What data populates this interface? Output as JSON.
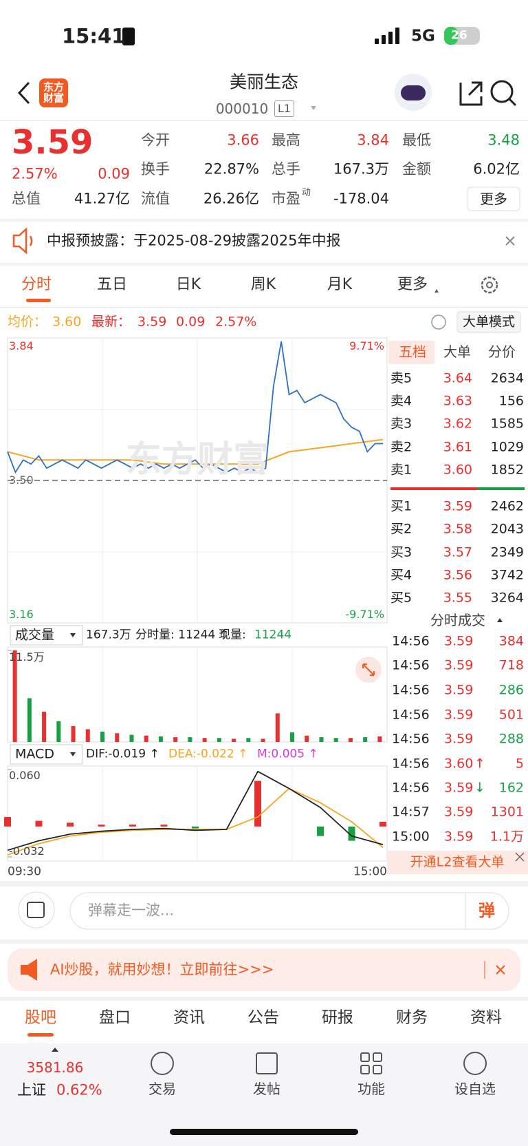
{
  "status_bar": {
    "time": "15:41",
    "network": "5G",
    "battery": "26"
  },
  "header": {
    "logo": "东方财富",
    "title": "美丽生态",
    "code": "000010",
    "level": "L1"
  },
  "quote": {
    "price": "3.59",
    "change_pct": "2.57%",
    "change": "0.09",
    "stats": [
      {
        "label": "今开",
        "value": "3.66",
        "color": "#e93030"
      },
      {
        "label": "最高",
        "value": "3.84",
        "color": "#e93030"
      },
      {
        "label": "最低",
        "value": "3.48",
        "color": "#19a047"
      },
      {
        "label": "换手",
        "value": "22.87%",
        "color": "#222222"
      },
      {
        "label": "总手",
        "value": "167.3万",
        "color": "#222222"
      },
      {
        "label": "金额",
        "value": "6.02亿",
        "color": "#222222"
      },
      {
        "label": "总值",
        "value": "41.27亿",
        "color": "#222222"
      },
      {
        "label": "流值",
        "value": "26.26亿",
        "color": "#222222"
      },
      {
        "label": "市盈",
        "sup": "动",
        "value": "-178.04",
        "color": "#222222"
      }
    ],
    "more": "更多"
  },
  "notice": "中报预披露：于2025-08-29披露2025年中报",
  "tabs": [
    "分时",
    "五日",
    "日K",
    "周K",
    "月K",
    "更多"
  ],
  "info": {
    "avg_label": "均价：",
    "avg": "3.60",
    "last_label": "最新：",
    "last": "3.59",
    "change": "0.09",
    "change_pct": "2.57%",
    "mode": "大单模式"
  },
  "chart": {
    "price": {
      "ylim": [
        3.16,
        3.84
      ],
      "yticks": [
        3.84,
        {
          "value": 3.5,
          "label": "3.50"
        },
        3.16
      ],
      "pct_labels": [
        "9.71%",
        "-9.71%"
      ],
      "watermark": "东方财富",
      "color": "#2f6fc4",
      "avg_color": "#f5a623",
      "values": [
        3.57,
        3.52,
        3.55,
        3.54,
        3.56,
        3.53,
        3.54,
        3.55,
        3.54,
        3.53,
        3.55,
        3.54,
        3.53,
        3.54,
        3.55,
        3.54,
        3.53,
        3.54,
        3.53,
        3.54,
        3.53,
        3.54,
        3.53,
        3.54,
        3.55,
        3.53,
        3.54,
        3.53,
        3.52,
        3.53,
        3.52,
        3.53,
        3.52,
        3.53,
        3.73,
        3.84,
        3.71,
        3.72,
        3.69,
        3.7,
        3.71,
        3.7,
        3.69,
        3.65,
        3.63,
        3.62,
        3.57,
        3.59,
        3.59
      ],
      "avg": [
        3.57,
        3.55,
        3.55,
        3.55,
        3.55,
        3.54,
        3.54,
        3.54,
        3.54,
        3.57,
        3.58,
        3.59,
        3.6
      ]
    },
    "volume": {
      "header": "成交量",
      "total": "167.3万",
      "period": "分时量: 11244 ↑",
      "now_label": "现量:",
      "now": "11244",
      "ylim": [
        0,
        11.5
      ],
      "yticks": [
        {
          "value": 11.5,
          "label": "11.5万"
        }
      ],
      "values": [
        11.5,
        5.5,
        3.8,
        2.6,
        2,
        1.6,
        1.3,
        1.1,
        0.9,
        0.8,
        0.7,
        0.6,
        0.6,
        0.5,
        0.5,
        0.4,
        0.5,
        0.4,
        3.6,
        1.2,
        0.8,
        0.6,
        0.5,
        0.5,
        0.6,
        0.7
      ],
      "colors": [
        "#e93030",
        "#19a047",
        "#e93030",
        "#19a047",
        "#e93030",
        "#e93030",
        "#19a047",
        "#e93030",
        "#19a047",
        "#e93030",
        "#19a047",
        "#e93030",
        "#19a047",
        "#e93030",
        "#19a047",
        "#e93030",
        "#19a047",
        "#e93030",
        "#e93030",
        "#19a047",
        "#e93030",
        "#19a047",
        "#19a047",
        "#e93030",
        "#19a047",
        "#e93030"
      ]
    },
    "macd": {
      "header": "MACD",
      "dif_label": "DIF:-0.019 ↑",
      "dea_label": "DEA:-0.022 ↑",
      "m_label": "M:0.005 ↑",
      "ylim": [
        -0.032,
        0.06
      ],
      "yticks": [
        {
          "value": 0.06,
          "label": "0.060"
        },
        {
          "value": -0.032,
          "label": "-0.032"
        }
      ],
      "dif": [
        -0.025,
        -0.015,
        -0.008,
        -0.005,
        -0.003,
        -0.002,
        -0.004,
        -0.003,
        0.058,
        0.04,
        0.02,
        -0.01,
        -0.019
      ],
      "dea": [
        -0.03,
        -0.018,
        -0.01,
        -0.006,
        -0.004,
        -0.003,
        -0.003,
        -0.003,
        0.01,
        0.04,
        0.025,
        0.005,
        -0.022
      ],
      "m": [
        0.01,
        0.006,
        0.004,
        0.002,
        0.002,
        0.002,
        -0.002,
        0,
        0.048,
        0,
        -0.01,
        -0.015,
        0.005
      ]
    },
    "xticks": [
      "09:30",
      "15:00"
    ]
  },
  "order_book": {
    "tabs": [
      "五档",
      "大单",
      "分价"
    ],
    "asks": [
      {
        "label": "卖5",
        "price": "3.64",
        "volume": "2634"
      },
      {
        "label": "卖4",
        "price": "3.63",
        "volume": "156"
      },
      {
        "label": "卖3",
        "price": "3.62",
        "volume": "1585"
      },
      {
        "label": "卖2",
        "price": "3.61",
        "volume": "1029"
      },
      {
        "label": "卖1",
        "price": "3.60",
        "volume": "1852"
      }
    ],
    "bids": [
      {
        "label": "买1",
        "price": "3.59",
        "volume": "2462"
      },
      {
        "label": "买2",
        "price": "3.58",
        "volume": "2043"
      },
      {
        "label": "买3",
        "price": "3.57",
        "volume": "2349"
      },
      {
        "label": "买4",
        "price": "3.56",
        "volume": "3742"
      },
      {
        "label": "买5",
        "price": "3.55",
        "volume": "3264"
      }
    ]
  },
  "trades": {
    "title": "分时成交",
    "rows": [
      {
        "time": "14:56",
        "price": "3.59",
        "volume": "384",
        "color": "#e93030"
      },
      {
        "time": "14:56",
        "price": "3.59",
        "volume": "718",
        "color": "#e93030"
      },
      {
        "time": "14:56",
        "price": "3.59",
        "volume": "286",
        "color": "#19a047"
      },
      {
        "time": "14:56",
        "price": "3.59",
        "volume": "501",
        "color": "#e93030"
      },
      {
        "time": "14:56",
        "price": "3.59",
        "volume": "288",
        "color": "#19a047"
      },
      {
        "time": "14:56",
        "price": "3.60",
        "arrow": "↑",
        "arrow_color": "#e93030",
        "volume": "5",
        "color": "#e93030"
      },
      {
        "time": "14:56",
        "price": "3.59",
        "arrow": "↓",
        "arrow_color": "#19a047",
        "volume": "162",
        "color": "#19a047"
      },
      {
        "time": "14:57",
        "price": "3.59",
        "volume": "1301",
        "color": "#e93030"
      },
      {
        "time": "15:00",
        "price": "3.59",
        "volume": "1.1万",
        "color": "#e93030"
      }
    ],
    "l2": "开通L2查看大单"
  },
  "comment": {
    "placeholder": "弹幕走一波...",
    "button": "弹"
  },
  "banner": "AI炒股，就用妙想！立即前往>>>",
  "bottom_tabs": [
    "股吧",
    "盘口",
    "资讯",
    "公告",
    "研报",
    "财务",
    "资料"
  ],
  "nav": {
    "index_value": "3581.86",
    "index_name": "上证",
    "index_change": "0.62%",
    "items": [
      "交易",
      "发帖",
      "功能",
      "设自选"
    ]
  }
}
